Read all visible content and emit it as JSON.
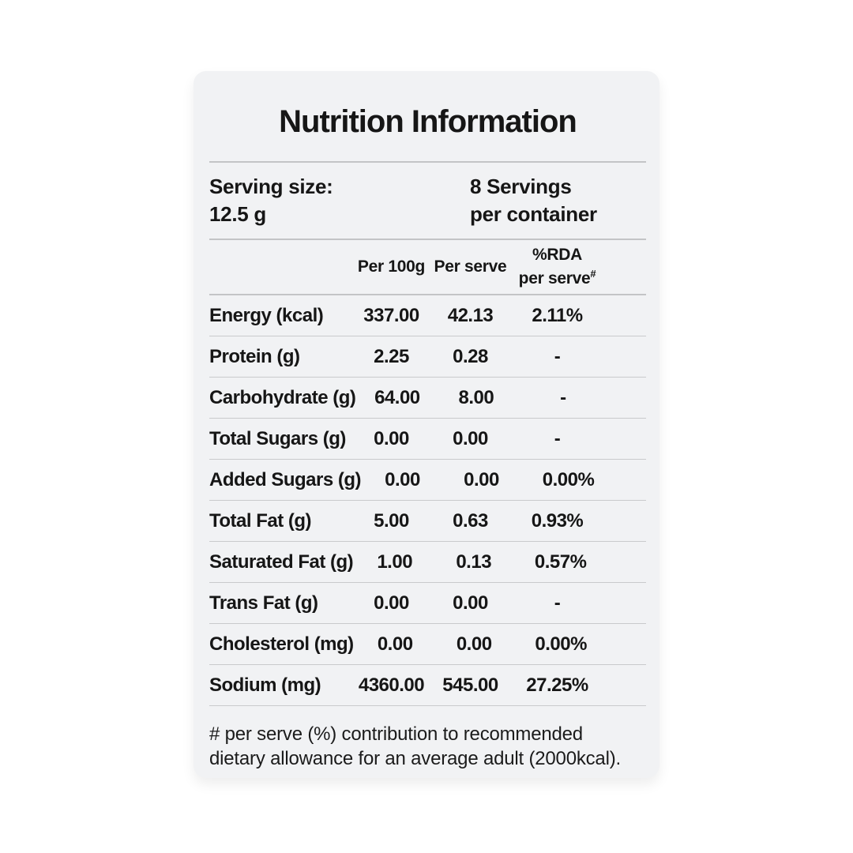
{
  "card": {
    "title": "Nutrition Information",
    "serving": {
      "label": "Serving size:",
      "size": "12.5 g",
      "servings_line1": "8 Servings",
      "servings_line2": "per container"
    },
    "columns": {
      "col1": "Per 100g",
      "col2": "Per serve",
      "col3_line1": "%RDA",
      "col3_line2": "per serve",
      "col3_sup": "#"
    },
    "rows": [
      {
        "label": "Energy (kcal)",
        "per100g": "337.00",
        "per_serve": "42.13",
        "rda": "2.11%"
      },
      {
        "label": "Protein (g)",
        "per100g": "2.25",
        "per_serve": "0.28",
        "rda": "-"
      },
      {
        "label": "Carbohydrate (g)",
        "per100g": "64.00",
        "per_serve": "8.00",
        "rda": "-"
      },
      {
        "label": "Total Sugars (g)",
        "per100g": "0.00",
        "per_serve": "0.00",
        "rda": "-"
      },
      {
        "label": "Added Sugars (g)",
        "per100g": "0.00",
        "per_serve": "0.00",
        "rda": "0.00%"
      },
      {
        "label": "Total Fat (g)",
        "per100g": "5.00",
        "per_serve": "0.63",
        "rda": "0.93%"
      },
      {
        "label": "Saturated Fat (g)",
        "per100g": "1.00",
        "per_serve": "0.13",
        "rda": "0.57%"
      },
      {
        "label": "Trans Fat (g)",
        "per100g": "0.00",
        "per_serve": "0.00",
        "rda": "-"
      },
      {
        "label": "Cholesterol (mg)",
        "per100g": "0.00",
        "per_serve": "0.00",
        "rda": "0.00%"
      },
      {
        "label": "Sodium (mg)",
        "per100g": "4360.00",
        "per_serve": "545.00",
        "rda": "27.25%"
      }
    ],
    "footnote": "# per serve (%) contribution to recommended dietary allowance for an average adult (2000kcal)."
  },
  "colors": {
    "page_bg": "#ffffff",
    "card_bg": "#f1f2f4",
    "text": "#161616",
    "divider": "#c3c4c6"
  }
}
